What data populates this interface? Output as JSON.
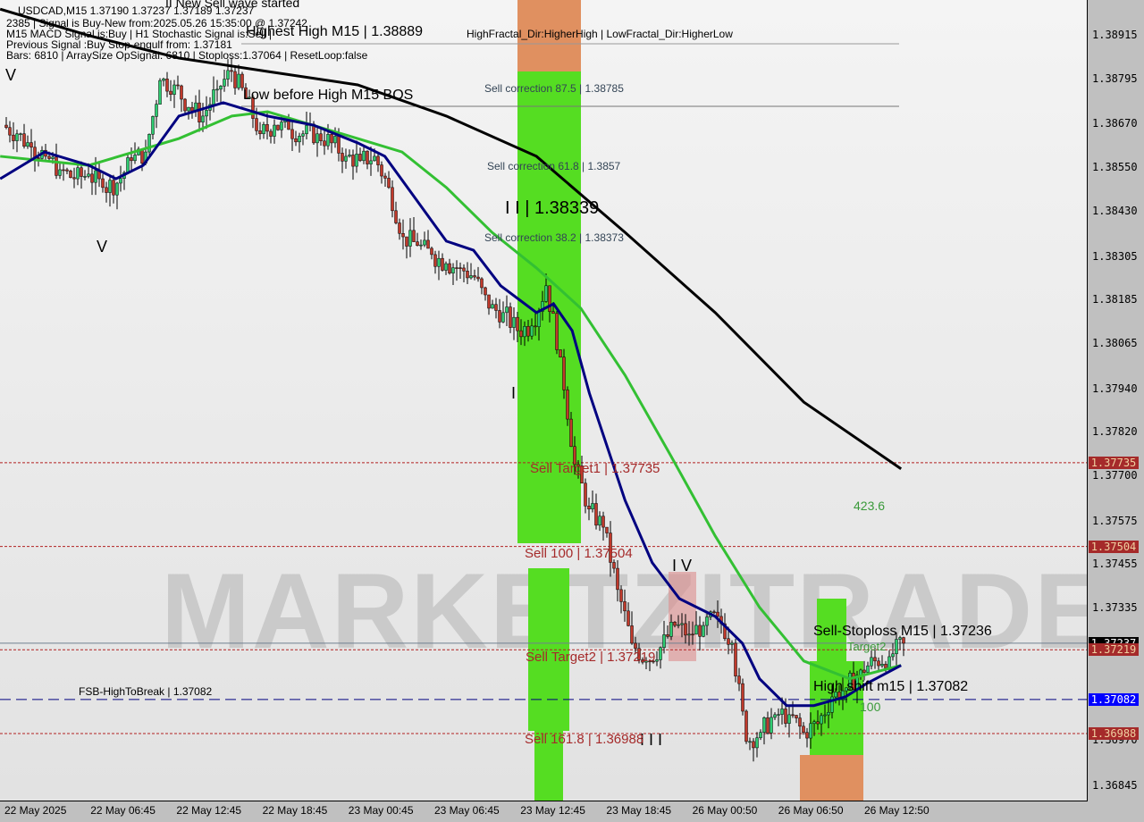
{
  "header": {
    "symbol_line": "USDCAD,M15  1.37190 1.37237 1.37189 1.37237",
    "signal_line": "2385 | Signal is Buy-New from:2025.05.26 15:35:00 @ 1.37242",
    "macd_line": "M15 MACD Signal is:Buy | H1 Stochastic Signal is:Sell | ",
    "previous_line": "Previous Signal :Buy Stop-engulf from: 1.37181",
    "bars_line": "Bars: 6810 | ArraySize OpSignal: 6810 | Stoploss:1.37064 | ResetLoop:false",
    "wave_line": "II New Sell wave started",
    "fractal_line": "HighFractal_Dir:HigherHigh | LowFractal_Dir:HigherLow"
  },
  "annotations": {
    "highest_high": "Highest High  M15 | 1.38889",
    "low_before_high": "Low before High   M15 BOS",
    "corr875": "Sell correction 87.5 | 1.38785",
    "corr618": "Sell correction 61.8 | 1.3857",
    "corr382": "Sell correction 38.2 | 1.38373",
    "wave3": "I I | 1.38339",
    "wave1": "I",
    "wave4": "I V",
    "wave2": "I I I",
    "v1": "V",
    "v2": "V",
    "target1": "Sell Target1 | 1.37735",
    "sell100": "Sell 100 | 1.37504",
    "target2": "Sell Target2 | 1.37219",
    "sell1618": "Sell 161.8 | 1.36988",
    "fsb": "FSB-HighToBreak | 1.37082",
    "stoploss": "Sell-Stoploss M15 | 1.37236",
    "high_shift": "High shift m15 | 1.37082",
    "fib4236": "423.6",
    "fib100": "100",
    "target2_small": "Target2",
    "watermark": "MARKETZITRADE"
  },
  "price_tags": [
    {
      "value": "1.37735",
      "bg": "#a52a2a",
      "fg": "#f0d0a0"
    },
    {
      "value": "1.37504",
      "bg": "#a52a2a",
      "fg": "#f0d0a0"
    },
    {
      "value": "1.37237",
      "bg": "#000000",
      "fg": "#ffffff"
    },
    {
      "value": "1.37219",
      "bg": "#a52a2a",
      "fg": "#f0d0a0"
    },
    {
      "value": "1.37082",
      "bg": "#0000ff",
      "fg": "#ffffff"
    },
    {
      "value": "1.36988",
      "bg": "#a52a2a",
      "fg": "#f0d0a0"
    }
  ],
  "chart_data": {
    "type": "line",
    "ylim": [
      1.36845,
      1.38915
    ],
    "y_ticks": [
      "1.38915",
      "1.38795",
      "1.38670",
      "1.38550",
      "1.38430",
      "1.38305",
      "1.38185",
      "1.38065",
      "1.37940",
      "1.37820",
      "1.37700",
      "1.37575",
      "1.37455",
      "1.37335",
      "1.36970",
      "1.36845"
    ],
    "x_ticks": [
      "22 May 2025",
      "22 May 06:45",
      "22 May 12:45",
      "22 May 18:45",
      "23 May 00:45",
      "23 May 06:45",
      "23 May 12:45",
      "23 May 18:45",
      "26 May 00:50",
      "26 May 06:50",
      "26 May 12:50"
    ],
    "closes": [
      1.38666,
      1.38642,
      1.38605,
      1.3858,
      1.38543,
      1.38518,
      1.38531,
      1.38494,
      1.38506,
      1.38568,
      1.38592,
      1.38789,
      1.38777,
      1.38715,
      1.38691,
      1.38765,
      1.38814,
      1.3874,
      1.38642,
      1.38666,
      1.38654,
      1.38642,
      1.38642,
      1.38617,
      1.3858,
      1.38568,
      1.3858,
      1.38494,
      1.38358,
      1.38334,
      1.38309,
      1.38284,
      1.38272,
      1.38247,
      1.38161,
      1.38149,
      1.38099,
      1.38112,
      1.38223,
      1.38026,
      1.3773,
      1.37607,
      1.37557,
      1.37385,
      1.37237,
      1.37188,
      1.37225,
      1.37286,
      1.37262,
      1.37286,
      1.37311,
      1.37237,
      1.36966,
      1.36991,
      1.3704,
      1.3704,
      1.36991,
      1.37015,
      1.37089,
      1.37114,
      1.37163,
      1.37188,
      1.372,
      1.37237
    ],
    "series": [
      {
        "color": "#000000",
        "points": [
          [
            -0.3,
            1.38986
          ],
          [
            5.9,
            1.38913
          ],
          [
            12.2,
            1.38851
          ],
          [
            18.4,
            1.38814
          ],
          [
            24.7,
            1.38777
          ],
          [
            30.9,
            1.38691
          ],
          [
            37.2,
            1.3858
          ],
          [
            43.4,
            1.3837
          ],
          [
            49.7,
            1.38149
          ],
          [
            55.9,
            1.37902
          ],
          [
            62.7,
            1.37718
          ]
        ]
      },
      {
        "color": "#33c033",
        "points": [
          [
            -0.3,
            1.3858
          ],
          [
            5.9,
            1.38555
          ],
          [
            12.2,
            1.38629
          ],
          [
            15.9,
            1.38691
          ],
          [
            18.4,
            1.38703
          ],
          [
            24.7,
            1.38629
          ],
          [
            27.8,
            1.38592
          ],
          [
            30.9,
            1.38494
          ],
          [
            34.1,
            1.3837
          ],
          [
            37.2,
            1.38272
          ],
          [
            40.3,
            1.38161
          ],
          [
            43.4,
            1.37976
          ],
          [
            46.6,
            1.37754
          ],
          [
            49.7,
            1.37533
          ],
          [
            52.8,
            1.37336
          ],
          [
            55.9,
            1.37188
          ],
          [
            59.1,
            1.37139
          ],
          [
            62.7,
            1.37176
          ]
        ]
      },
      {
        "color": "#000080",
        "points": [
          [
            -0.3,
            1.38518
          ],
          [
            2.8,
            1.38592
          ],
          [
            5.9,
            1.38555
          ],
          [
            7.8,
            1.38518
          ],
          [
            9.7,
            1.38555
          ],
          [
            12.2,
            1.38691
          ],
          [
            15.3,
            1.38728
          ],
          [
            18.4,
            1.38691
          ],
          [
            21.6,
            1.38666
          ],
          [
            24.7,
            1.38617
          ],
          [
            26.6,
            1.3858
          ],
          [
            29.1,
            1.38444
          ],
          [
            30.9,
            1.38346
          ],
          [
            32.8,
            1.38321
          ],
          [
            34.7,
            1.38223
          ],
          [
            37.2,
            1.38149
          ],
          [
            38.4,
            1.38173
          ],
          [
            39.7,
            1.38099
          ],
          [
            40.9,
            1.37927
          ],
          [
            43.4,
            1.37631
          ],
          [
            45.3,
            1.37459
          ],
          [
            47.2,
            1.3736
          ],
          [
            49.7,
            1.37311
          ],
          [
            51.6,
            1.37237
          ],
          [
            52.8,
            1.37139
          ],
          [
            54.7,
            1.37065
          ],
          [
            56.6,
            1.37065
          ],
          [
            58.8,
            1.37089
          ],
          [
            60.3,
            1.37126
          ],
          [
            62.7,
            1.37176
          ]
        ]
      }
    ],
    "levels": [
      {
        "price": 1.37735,
        "color": "#b22222",
        "style": "dotted"
      },
      {
        "price": 1.37504,
        "color": "#b22222",
        "style": "dotted"
      },
      {
        "price": 1.37219,
        "color": "#b22222",
        "style": "dotted"
      },
      {
        "price": 1.36988,
        "color": "#b22222",
        "style": "dotted"
      },
      {
        "price": 1.37082,
        "color": "#000080",
        "style": "dashed"
      },
      {
        "price": 1.37237,
        "color": "#708090",
        "style": "solid"
      }
    ],
    "grid": false
  }
}
